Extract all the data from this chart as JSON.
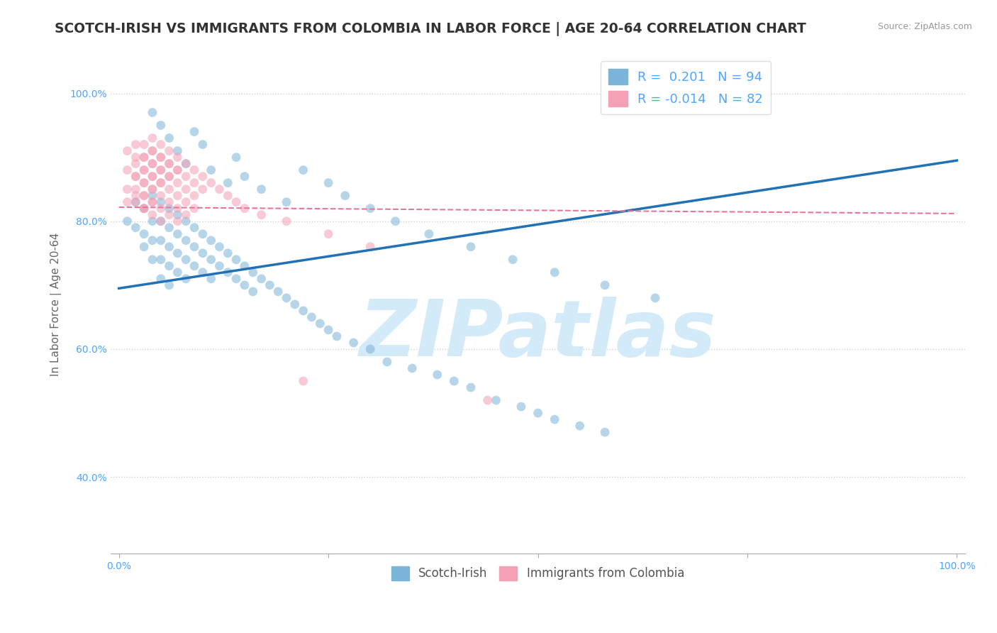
{
  "title": "SCOTCH-IRISH VS IMMIGRANTS FROM COLOMBIA IN LABOR FORCE | AGE 20-64 CORRELATION CHART",
  "source_text": "Source: ZipAtlas.com",
  "ylabel": "In Labor Force | Age 20-64",
  "xlim": [
    -0.01,
    1.01
  ],
  "ylim": [
    0.28,
    1.06
  ],
  "y_ticks": [
    0.4,
    0.6,
    0.8,
    1.0
  ],
  "y_tick_labels": [
    "40.0%",
    "60.0%",
    "80.0%",
    "100.0%"
  ],
  "x_ticks": [
    0.0,
    0.25,
    0.5,
    0.75,
    1.0
  ],
  "x_tick_labels": [
    "0.0%",
    "",
    "",
    "",
    "100.0%"
  ],
  "legend_blue_r": "0.201",
  "legend_blue_n": "94",
  "legend_pink_r": "-0.014",
  "legend_pink_n": "82",
  "blue_color": "#7ab4d8",
  "pink_color": "#f4a0b5",
  "trend_blue_color": "#2171b5",
  "trend_pink_color": "#e8759a",
  "watermark_color": "#d3eaf8",
  "watermark_text": "ZIPatlas",
  "scatter_alpha": 0.55,
  "scatter_size": 85,
  "blue_x": [
    0.01,
    0.02,
    0.02,
    0.03,
    0.03,
    0.03,
    0.04,
    0.04,
    0.04,
    0.04,
    0.05,
    0.05,
    0.05,
    0.05,
    0.05,
    0.06,
    0.06,
    0.06,
    0.06,
    0.06,
    0.07,
    0.07,
    0.07,
    0.07,
    0.08,
    0.08,
    0.08,
    0.08,
    0.09,
    0.09,
    0.09,
    0.1,
    0.1,
    0.1,
    0.11,
    0.11,
    0.11,
    0.12,
    0.12,
    0.13,
    0.13,
    0.14,
    0.14,
    0.15,
    0.15,
    0.16,
    0.16,
    0.17,
    0.18,
    0.19,
    0.2,
    0.21,
    0.22,
    0.23,
    0.24,
    0.25,
    0.26,
    0.28,
    0.3,
    0.32,
    0.35,
    0.38,
    0.4,
    0.42,
    0.45,
    0.48,
    0.5,
    0.52,
    0.55,
    0.58,
    0.04,
    0.05,
    0.06,
    0.07,
    0.08,
    0.09,
    0.1,
    0.11,
    0.13,
    0.14,
    0.15,
    0.17,
    0.2,
    0.22,
    0.25,
    0.27,
    0.3,
    0.33,
    0.37,
    0.42,
    0.47,
    0.52,
    0.58,
    0.64
  ],
  "blue_y": [
    0.8,
    0.83,
    0.79,
    0.82,
    0.78,
    0.76,
    0.84,
    0.8,
    0.77,
    0.74,
    0.83,
    0.8,
    0.77,
    0.74,
    0.71,
    0.82,
    0.79,
    0.76,
    0.73,
    0.7,
    0.81,
    0.78,
    0.75,
    0.72,
    0.8,
    0.77,
    0.74,
    0.71,
    0.79,
    0.76,
    0.73,
    0.78,
    0.75,
    0.72,
    0.77,
    0.74,
    0.71,
    0.76,
    0.73,
    0.75,
    0.72,
    0.74,
    0.71,
    0.73,
    0.7,
    0.72,
    0.69,
    0.71,
    0.7,
    0.69,
    0.68,
    0.67,
    0.66,
    0.65,
    0.64,
    0.63,
    0.62,
    0.61,
    0.6,
    0.58,
    0.57,
    0.56,
    0.55,
    0.54,
    0.52,
    0.51,
    0.5,
    0.49,
    0.48,
    0.47,
    0.97,
    0.95,
    0.93,
    0.91,
    0.89,
    0.94,
    0.92,
    0.88,
    0.86,
    0.9,
    0.87,
    0.85,
    0.83,
    0.88,
    0.86,
    0.84,
    0.82,
    0.8,
    0.78,
    0.76,
    0.74,
    0.72,
    0.7,
    0.68
  ],
  "pink_x": [
    0.01,
    0.01,
    0.01,
    0.01,
    0.02,
    0.02,
    0.02,
    0.02,
    0.02,
    0.02,
    0.02,
    0.02,
    0.03,
    0.03,
    0.03,
    0.03,
    0.03,
    0.03,
    0.03,
    0.03,
    0.03,
    0.03,
    0.03,
    0.04,
    0.04,
    0.04,
    0.04,
    0.04,
    0.04,
    0.04,
    0.04,
    0.04,
    0.04,
    0.04,
    0.04,
    0.05,
    0.05,
    0.05,
    0.05,
    0.05,
    0.05,
    0.05,
    0.05,
    0.05,
    0.05,
    0.06,
    0.06,
    0.06,
    0.06,
    0.06,
    0.06,
    0.06,
    0.06,
    0.07,
    0.07,
    0.07,
    0.07,
    0.07,
    0.07,
    0.07,
    0.08,
    0.08,
    0.08,
    0.08,
    0.08,
    0.09,
    0.09,
    0.09,
    0.09,
    0.1,
    0.1,
    0.11,
    0.12,
    0.13,
    0.14,
    0.15,
    0.17,
    0.2,
    0.25,
    0.3,
    0.22,
    0.44
  ],
  "pink_y": [
    0.91,
    0.88,
    0.85,
    0.83,
    0.92,
    0.9,
    0.87,
    0.85,
    0.83,
    0.89,
    0.87,
    0.84,
    0.92,
    0.9,
    0.88,
    0.86,
    0.84,
    0.82,
    0.9,
    0.88,
    0.86,
    0.84,
    0.82,
    0.93,
    0.91,
    0.89,
    0.87,
    0.85,
    0.83,
    0.81,
    0.91,
    0.89,
    0.87,
    0.85,
    0.83,
    0.92,
    0.9,
    0.88,
    0.86,
    0.84,
    0.82,
    0.8,
    0.9,
    0.88,
    0.86,
    0.91,
    0.89,
    0.87,
    0.85,
    0.83,
    0.81,
    0.89,
    0.87,
    0.9,
    0.88,
    0.86,
    0.84,
    0.82,
    0.8,
    0.88,
    0.89,
    0.87,
    0.85,
    0.83,
    0.81,
    0.88,
    0.86,
    0.84,
    0.82,
    0.87,
    0.85,
    0.86,
    0.85,
    0.84,
    0.83,
    0.82,
    0.81,
    0.8,
    0.78,
    0.76,
    0.55,
    0.52
  ],
  "blue_trend_x": [
    0.0,
    1.0
  ],
  "blue_trend_y": [
    0.695,
    0.895
  ],
  "pink_trend_x": [
    0.0,
    1.0
  ],
  "pink_trend_y": [
    0.822,
    0.812
  ],
  "grid_color": "#d0d0d0",
  "bg_color": "#ffffff",
  "title_fontsize": 13.5,
  "axis_label_fontsize": 11,
  "tick_fontsize": 10,
  "legend_fontsize": 13,
  "source_fontsize": 9,
  "tick_color": "#4da6ff"
}
